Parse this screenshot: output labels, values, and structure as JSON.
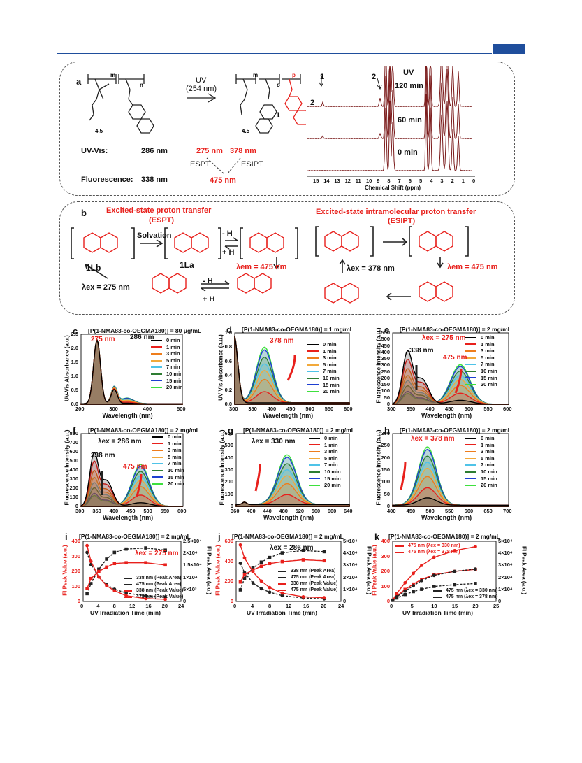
{
  "panel_a": {
    "label": "a",
    "uv_arrow": "UV",
    "uv_wavelength": "(254 nm)",
    "m": "m",
    "n": "n",
    "o": "o",
    "p": "p",
    "m2": "m",
    "oegma_n": "4.5",
    "oegma_n2": "4.5",
    "product1": "1",
    "product2": "2",
    "uvvis_label": "UV-Vis:",
    "uvvis_value": "286 nm",
    "uvvis_p1": "275 nm",
    "uvvis_p2": "378 nm",
    "espt": "ESPT",
    "esipt": "ESIPT",
    "fluor_label": "Fluorescence:",
    "fluor_value": "338 nm",
    "fluor_product": "475 nm",
    "nmr_peak1": "1",
    "nmr_peak2": "2",
    "nmr_uv": "UV",
    "nmr_traces": [
      "120 min",
      "60 min",
      "0 min"
    ],
    "nmr_ticks": [
      "15",
      "14",
      "13",
      "12",
      "11",
      "10",
      "9",
      "8",
      "7",
      "6",
      "5",
      "4",
      "3",
      "2",
      "1",
      "0"
    ],
    "nmr_xlabel": "Chemical Shift (ppm)"
  },
  "panel_b": {
    "label": "b",
    "espt_title": "Excited-state proton transfer",
    "espt_abbr": "(ESPT)",
    "esipt_title": "Excited-state intramolecular proton transfer",
    "esipt_abbr": "(ESIPT)",
    "solvation": "Solvation",
    "minus_h": "- H",
    "plus_h": "+ H",
    "lb": "1Lb",
    "la": "1La",
    "lem1": "λem = 475 nm",
    "lex1": "λex = 275 nm",
    "lex2": "λex = 378 nm",
    "lem2": "λem = 475 nm",
    "R": "R"
  },
  "legend_times": [
    "0 min",
    "1 min",
    "3 min",
    "5 min",
    "7 min",
    "10 min",
    "15 min",
    "20 min"
  ],
  "colors": {
    "times": [
      "#000000",
      "#e8201c",
      "#ee7d1c",
      "#f2a93b",
      "#4fc3e8",
      "#2e7d32",
      "#1e3fd1",
      "#3ee03e"
    ],
    "accent": "#e8201c",
    "frame": "#1f4e9c"
  },
  "panel_c": {
    "label": "c",
    "title": "[P(1-NMA83-co-OEGMA180)] = 80 μg/mL",
    "xlabel": "Wavelength (nm)",
    "ylabel": "UV-Vis Absorbance (a.u.)",
    "inset_275": "275 nm",
    "inset_286": "286 nm",
    "xticks": [
      "200",
      "300",
      "400",
      "500"
    ],
    "yticks": [
      "0.0",
      "0.5",
      "1.0",
      "1.5",
      "2.0",
      "2.5"
    ],
    "inset_xticks": [
      "260",
      "280",
      "300"
    ]
  },
  "panel_d": {
    "label": "d",
    "title": "[P(1-NMA83-co-OEGMA180)] = 1 mg/mL",
    "xlabel": "Wavelength (nm)",
    "ylabel": "UV-Vis Absorbance (a.u.)",
    "peak": "378 nm",
    "xticks": [
      "300",
      "350",
      "400",
      "450",
      "500",
      "550",
      "600"
    ],
    "yticks": [
      "0.0",
      "0.2",
      "0.4",
      "0.6",
      "0.8",
      "1.0"
    ]
  },
  "panel_e": {
    "label": "e",
    "title": "[P(1-NMA83-co-OEGMA180)] = 2 mg/mL",
    "xlabel": "Wavelength (nm)",
    "ylabel": "Fluorescence Intensity (a.u.)",
    "lex": "λex = 275 nm",
    "p1": "338 nm",
    "p2": "475 nm",
    "xticks": [
      "300",
      "350",
      "400",
      "450",
      "500",
      "550",
      "600"
    ],
    "yticks": [
      "0",
      "50",
      "100",
      "150",
      "200",
      "250",
      "300",
      "350",
      "400",
      "450",
      "500",
      "550"
    ]
  },
  "panel_f": {
    "label": "f",
    "title": "[P(1-NMA83-co-OEGMA180)] = 2 mg/mL",
    "xlabel": "Wavelength (nm)",
    "ylabel": "Fluorescence Intensity (a.u.)",
    "lex": "λex = 286 nm",
    "p1": "338 nm",
    "p2": "475 nm",
    "xticks": [
      "300",
      "350",
      "400",
      "450",
      "500",
      "550",
      "600"
    ],
    "yticks": [
      "0",
      "100",
      "200",
      "300",
      "400",
      "500",
      "600",
      "700",
      "800"
    ]
  },
  "panel_g": {
    "label": "g",
    "title": "[P(1-NMA83-co-OEGMA180)] = 2 mg/mL",
    "xlabel": "Wavelength (nm)",
    "ylabel": "Fluorescence Intensity (a.u.)",
    "lex": "λex = 330 nm",
    "xticks": [
      "360",
      "400",
      "440",
      "480",
      "520",
      "560",
      "600",
      "640"
    ],
    "yticks": [
      "0",
      "100",
      "200",
      "300",
      "400",
      "500",
      "600"
    ]
  },
  "panel_h": {
    "label": "h",
    "title": "[P(1-NMA83-co-OEGMA180)] = 2 mg/mL",
    "xlabel": "Wavelength (nm)",
    "ylabel": "Fluorescence Intensity (a.u.)",
    "lex": "λex = 378 nm",
    "xticks": [
      "400",
      "450",
      "500",
      "550",
      "600",
      "650",
      "700"
    ],
    "yticks": [
      "0",
      "50",
      "100",
      "150",
      "200",
      "250",
      "300"
    ]
  },
  "panel_i": {
    "label": "i",
    "title": "[P(1-NMA83-co-OEGMA180)] = 2 mg/mL",
    "xlabel": "UV Irradiation Time (min)",
    "ylabel": "Fl Peak Value (a.u.)",
    "ylabel2": "Fl Peak Area (a.u.)",
    "lex": "λex = 275 nm",
    "legend": [
      "338 nm (Peak Area)",
      "475 nm (Peak Area)",
      "338 nm (Peak Value)",
      "475 nm (Peak Value)"
    ],
    "xticks": [
      "0",
      "4",
      "8",
      "12",
      "16",
      "20",
      "24"
    ],
    "yticks": [
      "0",
      "100",
      "200",
      "300",
      "400"
    ],
    "y2ticks": [
      "0",
      "5×10³",
      "1×10⁴",
      "1.5×10⁴",
      "2×10⁴",
      "2.5×10⁴"
    ]
  },
  "panel_j": {
    "label": "j",
    "title": "[P(1-NMA83-co-OEGMA180)] = 2 mg/mL",
    "xlabel": "UV Irradiation Time (min)",
    "ylabel": "Fl Peak Value (a.u.)",
    "ylabel2": "Fl Peak Area (a.u.)",
    "lex": "λex = 286 nm",
    "legend": [
      "338 nm (Peak Area)",
      "475 nm (Peak Area)",
      "338 nm (Peak Value)",
      "475 nm (Peak Value)"
    ],
    "xticks": [
      "0",
      "4",
      "8",
      "12",
      "16",
      "20",
      "24"
    ],
    "yticks": [
      "0",
      "200",
      "400",
      "600"
    ],
    "y2ticks": [
      "0",
      "1×10⁴",
      "2×10⁴",
      "3×10⁴",
      "4×10⁴",
      "5×10⁴"
    ]
  },
  "panel_k": {
    "label": "k",
    "title": "[P(1-NMA83-co-OEGMA180)] = 2 mg/mL",
    "xlabel": "UV Irradiation Time (min)",
    "ylabel": "Fl Peak Value (a.u.)",
    "ylabel2": "Fl Peak Area (a.u.)",
    "legend_top": [
      "475 nm (λex = 330 nm)",
      "475 nm (λex = 378 nm)"
    ],
    "legend_bottom": [
      "475 nm (λex = 330 nm)",
      "475 nm (λex = 378 nm)"
    ],
    "xticks": [
      "0",
      "5",
      "10",
      "15",
      "20",
      "25"
    ],
    "yticks": [
      "0",
      "100",
      "200",
      "300",
      "400"
    ],
    "y2ticks": [
      "0",
      "1×10⁴",
      "2×10⁴",
      "3×10⁴",
      "4×10⁴",
      "5×10⁴"
    ]
  },
  "chart_data": [
    {
      "type": "line",
      "panel": "i",
      "x": [
        0,
        1,
        3,
        5,
        7,
        10,
        15,
        20
      ],
      "series": [
        {
          "name": "338 nm (Peak Area)",
          "values": [
            22000,
            16500,
            11000,
            7500,
            5500,
            3800,
            2500,
            2000
          ]
        },
        {
          "name": "475 nm (Peak Area)",
          "values": [
            3500,
            8000,
            14500,
            19000,
            22000,
            23500,
            24000,
            23000
          ]
        },
        {
          "name": "338 nm (Peak Value)",
          "values": [
            390,
            280,
            170,
            110,
            75,
            40,
            20,
            15
          ]
        },
        {
          "name": "475 nm (Peak Value)",
          "values": [
            90,
            160,
            210,
            240,
            265,
            270,
            270,
            255
          ]
        }
      ]
    },
    {
      "type": "line",
      "panel": "j",
      "x": [
        0,
        1,
        3,
        5,
        7,
        10,
        15,
        20
      ],
      "series": [
        {
          "name": "338 nm (Peak Area)",
          "values": [
            33000,
            25000,
            16000,
            11000,
            8000,
            5000,
            3000,
            2200
          ]
        },
        {
          "name": "475 nm (Peak Area)",
          "values": [
            10000,
            20000,
            29000,
            34000,
            38000,
            42000,
            44000,
            43000
          ]
        },
        {
          "name": "338 nm (Peak Value)",
          "values": [
            610,
            470,
            320,
            220,
            150,
            90,
            50,
            40
          ]
        },
        {
          "name": "475 nm (Peak Value)",
          "values": [
            210,
            290,
            340,
            380,
            410,
            430,
            450,
            440
          ]
        }
      ]
    },
    {
      "type": "line",
      "panel": "k",
      "x": [
        0,
        1,
        3,
        5,
        7,
        10,
        15,
        20
      ],
      "series": [
        {
          "name": "475 nm (λex = 330 nm)",
          "axis": "left",
          "values": [
            10,
            60,
            140,
            210,
            270,
            330,
            380,
            410
          ]
        },
        {
          "name": "475 nm (λex = 378 nm)",
          "axis": "left",
          "values": [
            10,
            40,
            90,
            130,
            165,
            200,
            225,
            240
          ]
        },
        {
          "name": "475 nm (λex = 330 nm)",
          "axis": "right",
          "values": [
            1000,
            4000,
            9000,
            13500,
            18000,
            22500,
            26000,
            28000
          ]
        },
        {
          "name": "475 nm (λex = 378 nm)",
          "axis": "right",
          "values": [
            1000,
            3000,
            6000,
            8500,
            10500,
            13000,
            14500,
            15500
          ]
        }
      ]
    }
  ]
}
